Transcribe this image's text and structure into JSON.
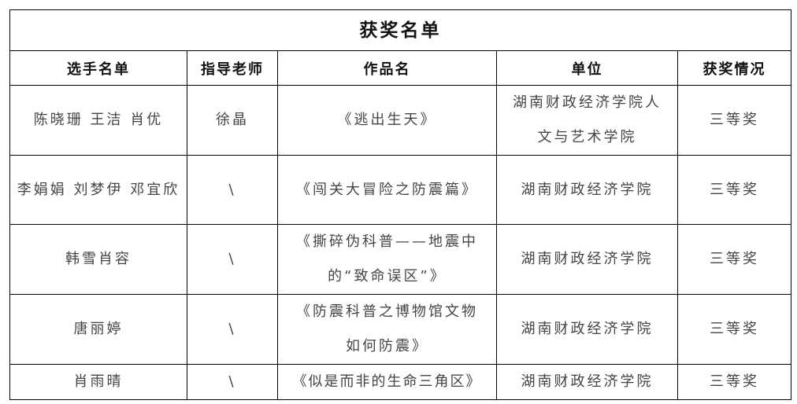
{
  "title": "获奖名单",
  "headers": [
    "选手名单",
    "指导老师",
    "作品名",
    "单位",
    "获奖情况"
  ],
  "rows": [
    [
      "陈晓珊 王洁 肖优",
      "徐晶",
      "《逃出生天》",
      "湖南财政经济学院人文与艺术学院",
      "三等奖"
    ],
    [
      "李娟娟 刘梦伊 邓宜欣",
      "\\",
      "《闯关大冒险之防震篇》",
      "湖南财政经济学院",
      "三等奖"
    ],
    [
      "韩雪肖容",
      "\\",
      "《撕碎伪科普——地震中的“致命误区”》",
      "湖南财政经济学院",
      "三等奖"
    ],
    [
      "唐丽婷",
      "\\",
      "《防震科普之博物馆文物如何防震》",
      "湖南财政经济学院",
      "三等奖"
    ],
    [
      "肖雨晴",
      "\\",
      "《似是而非的生命三角区》",
      "湖南财政经济学院",
      "三等奖"
    ]
  ]
}
